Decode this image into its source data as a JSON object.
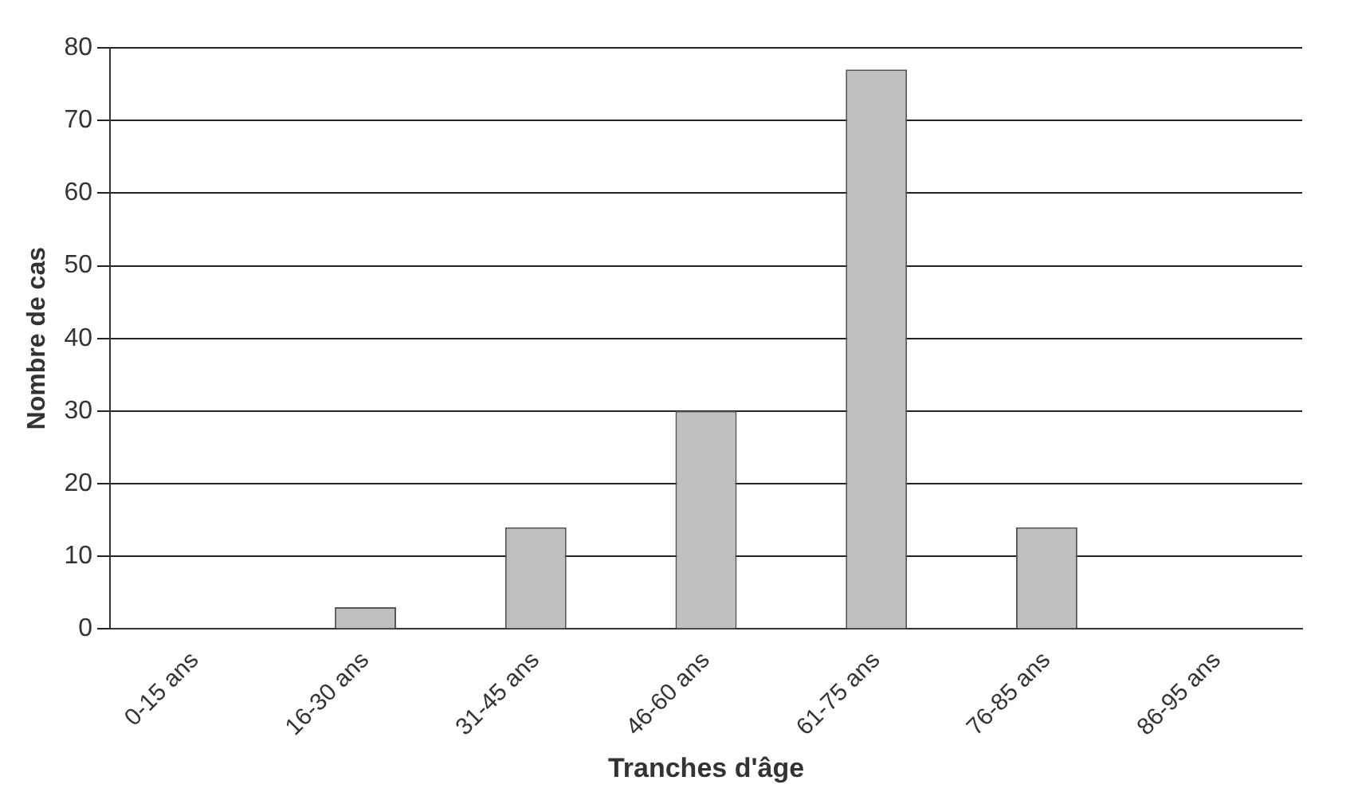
{
  "chart_data": {
    "type": "bar",
    "xlabel": "Tranches d'âge",
    "ylabel": "Nombre de cas",
    "categories": [
      "0-15 ans",
      "16-30 ans",
      "31-45 ans",
      "46-60 ans",
      "61-75 ans",
      "76-85 ans",
      "86-95 ans"
    ],
    "values": [
      0,
      3,
      14,
      30,
      77,
      14,
      0
    ],
    "color": "#c0c0c0",
    "ylim": [
      0,
      80
    ],
    "yticks": [
      0,
      10,
      20,
      30,
      40,
      50,
      60,
      70,
      80
    ],
    "grid": "y",
    "legend": false
  }
}
